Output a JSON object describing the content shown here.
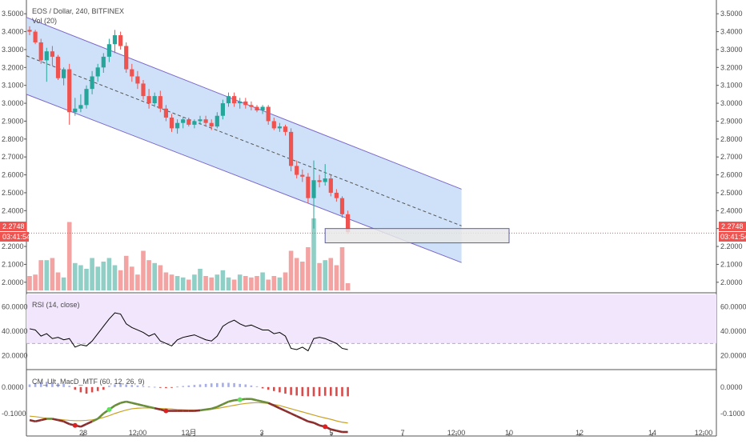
{
  "header": {
    "symbol": "EOS / Dollar, 240, BITFINEX",
    "volume_label": "Vol (20)",
    "rsi_label": "RSI (14, close)",
    "macd_label": "CM_Ult_MacD_MTF (60, 12, 26, 9)"
  },
  "price_badge": {
    "value": "2.2748",
    "countdown": "03:41:54",
    "color": "#ef5350"
  },
  "colors": {
    "up": "#26a69a",
    "down": "#ef5350",
    "channel_fill": "#bfd7f5",
    "channel_line": "#7b68c9",
    "rsi_band": "#f1e6fb",
    "rsi_line": "#000000",
    "macd_fast": "#6a8d3a",
    "macd_slow": "#c9a227",
    "vol_up": "#8fcfc6",
    "vol_down": "#f4a3a3"
  },
  "chart_data": [
    {
      "type": "candlestick",
      "title": "EOS / Dollar, 240, BITFINEX",
      "y_ticks": [
        "3.5000",
        "3.4000",
        "3.3000",
        "3.2000",
        "3.1000",
        "3.0000",
        "2.9000",
        "2.8000",
        "2.7000",
        "2.6000",
        "2.5000",
        "2.4000",
        "2.3000",
        "2.2000",
        "2.1000",
        "2.0000"
      ],
      "ylim": [
        1.95,
        3.55
      ],
      "x_ticks": [
        "28",
        "12:00",
        "12月",
        "3",
        "5",
        "7",
        "12:00",
        "10",
        "12",
        "14",
        "12:00"
      ],
      "candles": [
        [
          3.41,
          3.43,
          3.38,
          3.4
        ],
        [
          3.4,
          3.41,
          3.33,
          3.34
        ],
        [
          3.34,
          3.36,
          3.22,
          3.24
        ],
        [
          3.24,
          3.31,
          3.12,
          3.29
        ],
        [
          3.29,
          3.32,
          3.21,
          3.26
        ],
        [
          3.26,
          3.27,
          3.13,
          3.14
        ],
        [
          3.14,
          3.2,
          3.1,
          3.19
        ],
        [
          3.19,
          3.22,
          2.88,
          2.95
        ],
        [
          2.95,
          3.03,
          2.93,
          2.97
        ],
        [
          2.97,
          3.05,
          2.95,
          2.99
        ],
        [
          2.99,
          3.1,
          2.97,
          3.08
        ],
        [
          3.08,
          3.18,
          3.05,
          3.15
        ],
        [
          3.15,
          3.22,
          3.12,
          3.2
        ],
        [
          3.2,
          3.28,
          3.17,
          3.26
        ],
        [
          3.26,
          3.36,
          3.23,
          3.33
        ],
        [
          3.33,
          3.41,
          3.28,
          3.38
        ],
        [
          3.38,
          3.4,
          3.3,
          3.32
        ],
        [
          3.32,
          3.34,
          3.17,
          3.19
        ],
        [
          3.19,
          3.22,
          3.12,
          3.15
        ],
        [
          3.15,
          3.18,
          3.08,
          3.11
        ],
        [
          3.11,
          3.13,
          3.02,
          3.04
        ],
        [
          3.04,
          3.08,
          2.97,
          3.0
        ],
        [
          3.0,
          3.06,
          2.98,
          3.04
        ],
        [
          3.04,
          3.07,
          2.95,
          2.97
        ],
        [
          2.97,
          2.99,
          2.9,
          2.92
        ],
        [
          2.92,
          2.94,
          2.84,
          2.86
        ],
        [
          2.86,
          2.91,
          2.83,
          2.89
        ],
        [
          2.89,
          2.92,
          2.86,
          2.91
        ],
        [
          2.91,
          2.92,
          2.87,
          2.88
        ],
        [
          2.88,
          2.91,
          2.86,
          2.9
        ],
        [
          2.9,
          2.93,
          2.88,
          2.91
        ],
        [
          2.91,
          2.93,
          2.87,
          2.89
        ],
        [
          2.89,
          2.91,
          2.85,
          2.87
        ],
        [
          2.87,
          2.95,
          2.86,
          2.93
        ],
        [
          2.93,
          3.02,
          2.91,
          3.0
        ],
        [
          3.0,
          3.06,
          2.98,
          3.04
        ],
        [
          3.04,
          3.06,
          2.98,
          3.0
        ],
        [
          3.0,
          3.03,
          2.97,
          3.01
        ],
        [
          3.01,
          3.03,
          2.97,
          2.99
        ],
        [
          2.99,
          3.01,
          2.96,
          2.98
        ],
        [
          2.98,
          2.99,
          2.95,
          2.96
        ],
        [
          2.96,
          2.99,
          2.94,
          2.98
        ],
        [
          2.98,
          2.99,
          2.88,
          2.9
        ],
        [
          2.9,
          2.92,
          2.85,
          2.86
        ],
        [
          2.86,
          2.89,
          2.84,
          2.87
        ],
        [
          2.87,
          2.88,
          2.82,
          2.84
        ],
        [
          2.84,
          2.86,
          2.62,
          2.65
        ],
        [
          2.65,
          2.68,
          2.58,
          2.6
        ],
        [
          2.6,
          2.63,
          2.56,
          2.59
        ],
        [
          2.59,
          2.61,
          2.44,
          2.47
        ],
        [
          2.47,
          2.68,
          2.3,
          2.57
        ],
        [
          2.57,
          2.6,
          2.53,
          2.56
        ],
        [
          2.56,
          2.66,
          2.54,
          2.58
        ],
        [
          2.58,
          2.6,
          2.48,
          2.5
        ],
        [
          2.5,
          2.52,
          2.45,
          2.47
        ],
        [
          2.47,
          2.48,
          2.36,
          2.38
        ],
        [
          2.38,
          2.4,
          2.27,
          2.28
        ]
      ],
      "volumes": [
        20,
        22,
        42,
        42,
        45,
        25,
        18,
        95,
        38,
        35,
        30,
        45,
        33,
        40,
        45,
        35,
        28,
        48,
        33,
        22,
        55,
        42,
        38,
        35,
        25,
        22,
        20,
        18,
        15,
        22,
        30,
        20,
        18,
        22,
        28,
        18,
        15,
        22,
        20,
        18,
        20,
        25,
        15,
        20,
        18,
        25,
        55,
        45,
        40,
        60,
        100,
        38,
        42,
        45,
        35,
        60,
        10
      ],
      "channel": {
        "x_start": 0,
        "x_end": 76,
        "upper": [
          3.48,
          2.52
        ],
        "lower": [
          3.05,
          2.11
        ]
      },
      "price_line": 2.2748,
      "box": {
        "x": [
          52,
          85
        ],
        "y": [
          2.22,
          2.3
        ]
      }
    },
    {
      "type": "line",
      "title": "RSI (14, close)",
      "y_ticks": [
        "60.0000",
        "40.0000",
        "20.0000"
      ],
      "ylim": [
        10,
        70
      ],
      "band": [
        30,
        70
      ],
      "values": [
        42,
        41,
        36,
        38,
        34,
        35,
        33,
        34,
        27,
        29,
        28,
        32,
        38,
        44,
        50,
        55,
        54,
        46,
        43,
        41,
        39,
        36,
        38,
        32,
        30,
        28,
        33,
        35,
        36,
        37,
        35,
        33,
        32,
        36,
        44,
        47,
        49,
        46,
        44,
        45,
        43,
        41,
        41,
        38,
        39,
        36,
        26,
        25,
        27,
        24,
        34,
        35,
        34,
        32,
        30,
        26,
        25
      ]
    },
    {
      "type": "line",
      "title": "CM_Ult_MacD_MTF (60, 12, 26, 9)",
      "y_ticks": [
        "0.0000",
        "-0.1000"
      ],
      "ylim": [
        -0.17,
        0.06
      ],
      "fast": [
        -0.125,
        -0.13,
        -0.125,
        -0.12,
        -0.12,
        -0.125,
        -0.13,
        -0.14,
        -0.145,
        -0.15,
        -0.14,
        -0.13,
        -0.12,
        -0.1,
        -0.085,
        -0.07,
        -0.06,
        -0.055,
        -0.06,
        -0.065,
        -0.07,
        -0.075,
        -0.08,
        -0.085,
        -0.09,
        -0.09,
        -0.09,
        -0.09,
        -0.09,
        -0.09,
        -0.088,
        -0.085,
        -0.082,
        -0.075,
        -0.065,
        -0.055,
        -0.05,
        -0.048,
        -0.045,
        -0.045,
        -0.05,
        -0.055,
        -0.06,
        -0.07,
        -0.08,
        -0.09,
        -0.1,
        -0.11,
        -0.12,
        -0.13,
        -0.135,
        -0.145,
        -0.15,
        -0.16,
        -0.165,
        -0.17,
        -0.17
      ],
      "slow": [
        -0.11,
        -0.112,
        -0.115,
        -0.118,
        -0.12,
        -0.122,
        -0.124,
        -0.126,
        -0.127,
        -0.127,
        -0.126,
        -0.124,
        -0.12,
        -0.115,
        -0.108,
        -0.1,
        -0.093,
        -0.087,
        -0.082,
        -0.08,
        -0.079,
        -0.079,
        -0.08,
        -0.081,
        -0.082,
        -0.083,
        -0.085,
        -0.086,
        -0.087,
        -0.087,
        -0.087,
        -0.086,
        -0.084,
        -0.081,
        -0.077,
        -0.073,
        -0.069,
        -0.065,
        -0.062,
        -0.06,
        -0.059,
        -0.06,
        -0.062,
        -0.066,
        -0.07,
        -0.076,
        -0.082,
        -0.088,
        -0.094,
        -0.1,
        -0.106,
        -0.112,
        -0.117,
        -0.122,
        -0.128,
        -0.133,
        -0.136
      ],
      "histogram": [
        0.01,
        0.015,
        0.018,
        0.02,
        0.018,
        0.015,
        0.012,
        0.005,
        -0.01,
        -0.02,
        -0.025,
        -0.02,
        -0.015,
        -0.01,
        0.005,
        0.01,
        0.012,
        0.01,
        0.008,
        0.006,
        0.004,
        0.002,
        0.001,
        -0.002,
        -0.004,
        -0.003,
        0.002,
        0.004,
        0.006,
        0.008,
        0.01,
        0.012,
        0.014,
        0.015,
        0.016,
        0.016,
        0.015,
        0.012,
        0.01,
        0.006,
        0.003,
        -0.005,
        -0.01,
        -0.015,
        -0.02,
        -0.025,
        -0.03,
        -0.032,
        -0.034,
        -0.035,
        -0.035,
        -0.034,
        -0.033,
        -0.033,
        -0.034,
        -0.035,
        -0.035
      ],
      "cross_markers": [
        [
          8,
          "down"
        ],
        [
          14,
          "up"
        ],
        [
          24,
          "down"
        ],
        [
          37,
          "up"
        ],
        [
          52,
          "down"
        ]
      ]
    }
  ]
}
